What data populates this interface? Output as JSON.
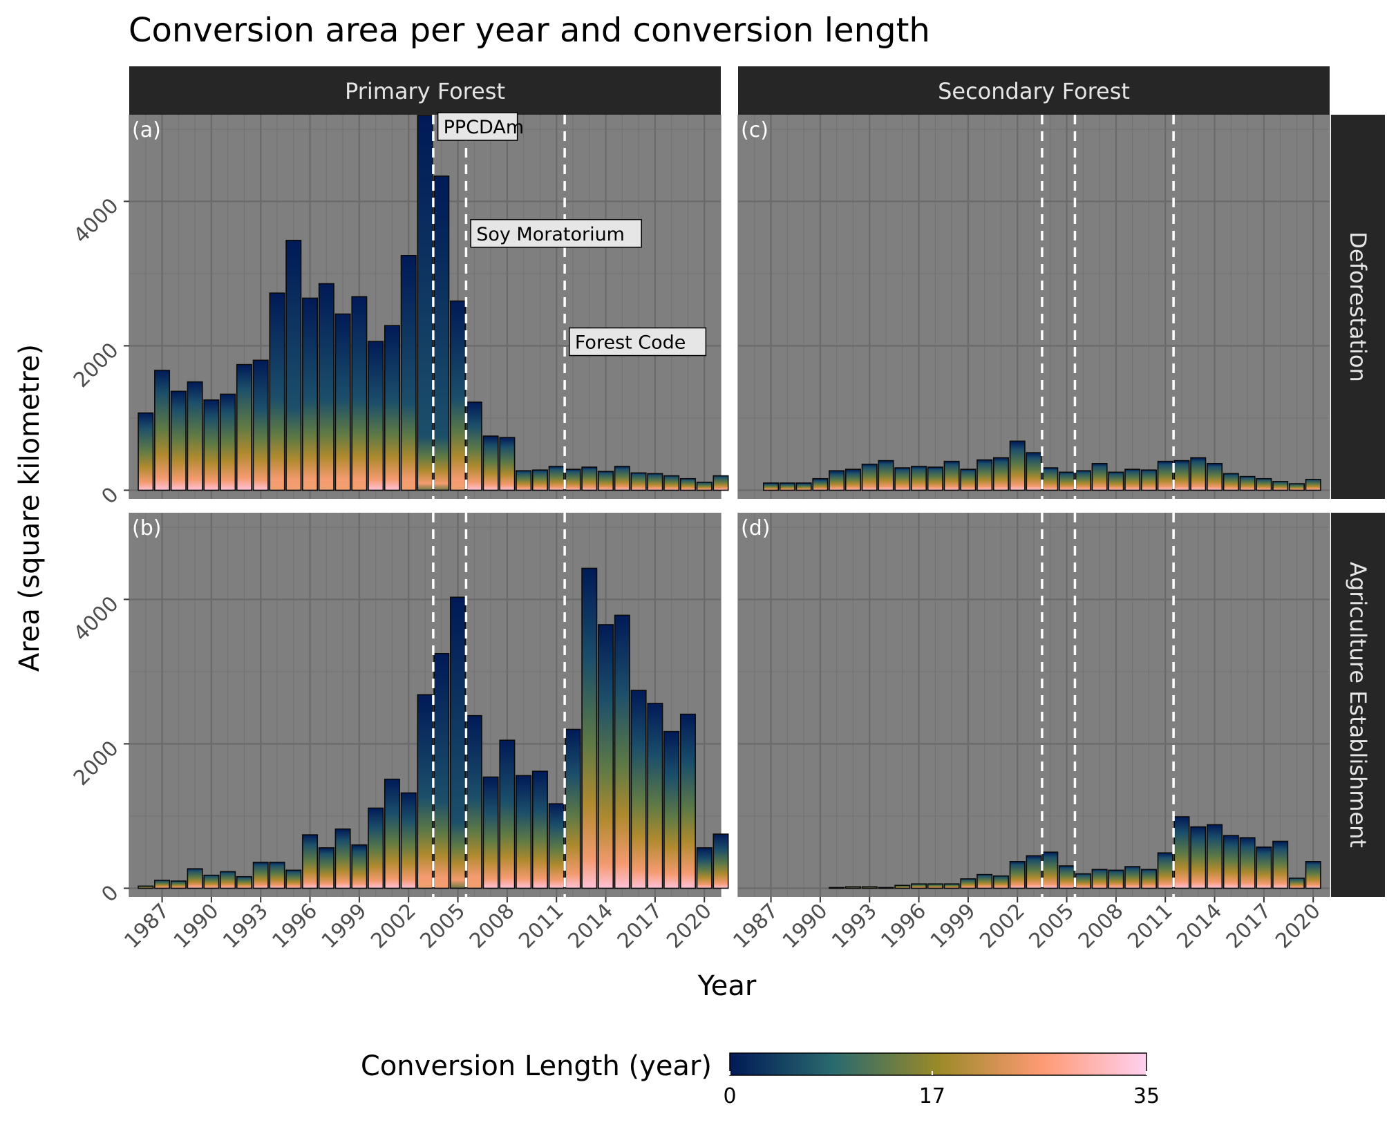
{
  "chart_data": {
    "type": "bar",
    "title": "Conversion area per year and conversion length",
    "xlabel": "Year",
    "ylabel": "Area (square kilometre)",
    "columns": [
      "Primary Forest",
      "Secondary Forest"
    ],
    "rows": [
      "Deforestation",
      "Agriculture Establishment"
    ],
    "x_range": [
      1985,
      2021
    ],
    "ylim": [
      -120,
      5200
    ],
    "x_ticks": [
      1987,
      1990,
      1993,
      1996,
      1999,
      2002,
      2005,
      2008,
      2011,
      2014,
      2017,
      2020
    ],
    "y_ticks": [
      0,
      2000,
      4000
    ],
    "policy_lines": [
      2003.5,
      2005.5,
      2011.5
    ],
    "policy_labels": [
      {
        "text": "PPCDAm",
        "x": 2003.7,
        "y": 4960
      },
      {
        "text": "Soy Moratorium",
        "x": 2005.7,
        "y": 3480
      },
      {
        "text": "Forest Code",
        "x": 2011.7,
        "y": 1980
      }
    ],
    "colorbar": {
      "title": "Conversion Length (year)",
      "min": 0,
      "max": 35,
      "ticks": [
        0,
        17,
        35
      ],
      "colors": [
        "#001a57",
        "#2a6a6e",
        "#9a8a28",
        "#ff9a74",
        "#ffd0f0"
      ]
    },
    "panels": [
      {
        "tag": "(a)",
        "column": "Primary Forest",
        "row": "Deforestation",
        "years": [
          1986,
          1987,
          1988,
          1989,
          1990,
          1991,
          1992,
          1993,
          1994,
          1995,
          1996,
          1997,
          1998,
          1999,
          2000,
          2001,
          2002,
          2003,
          2004,
          2005,
          2006,
          2007,
          2008,
          2009,
          2010,
          2011,
          2012,
          2013,
          2014,
          2015,
          2016,
          2017,
          2018,
          2019,
          2020,
          2021
        ],
        "values": [
          1070,
          1660,
          1370,
          1500,
          1250,
          1330,
          1740,
          1800,
          2730,
          3460,
          2660,
          2860,
          2440,
          2680,
          2060,
          2280,
          3250,
          5190,
          4350,
          2620,
          1220,
          750,
          730,
          270,
          280,
          330,
          290,
          320,
          260,
          330,
          240,
          230,
          200,
          160,
          110,
          200
        ]
      },
      {
        "tag": "(b)",
        "column": "Primary Forest",
        "row": "Agriculture Establishment",
        "years": [
          1986,
          1987,
          1988,
          1989,
          1990,
          1991,
          1992,
          1993,
          1994,
          1995,
          1996,
          1997,
          1998,
          1999,
          2000,
          2001,
          2002,
          2003,
          2004,
          2005,
          2006,
          2007,
          2008,
          2009,
          2010,
          2011,
          2012,
          2013,
          2014,
          2015,
          2016,
          2017,
          2018,
          2019,
          2020,
          2021
        ],
        "values": [
          30,
          110,
          100,
          270,
          180,
          230,
          160,
          360,
          360,
          250,
          740,
          560,
          820,
          600,
          1110,
          1510,
          1320,
          2680,
          3250,
          4030,
          2390,
          1540,
          2050,
          1560,
          1620,
          1170,
          2200,
          4430,
          3650,
          3780,
          2740,
          2560,
          2170,
          2410,
          560,
          750
        ]
      },
      {
        "tag": "(c)",
        "column": "Secondary Forest",
        "row": "Deforestation",
        "years": [
          1986,
          1987,
          1988,
          1989,
          1990,
          1991,
          1992,
          1993,
          1994,
          1995,
          1996,
          1997,
          1998,
          1999,
          2000,
          2001,
          2002,
          2003,
          2004,
          2005,
          2006,
          2007,
          2008,
          2009,
          2010,
          2011,
          2012,
          2013,
          2014,
          2015,
          2016,
          2017,
          2018,
          2019,
          2020,
          2021
        ],
        "values": [
          0,
          100,
          100,
          100,
          160,
          270,
          290,
          360,
          410,
          310,
          330,
          320,
          400,
          290,
          420,
          450,
          680,
          520,
          310,
          250,
          270,
          370,
          250,
          290,
          280,
          400,
          410,
          450,
          370,
          230,
          190,
          160,
          120,
          90,
          150,
          0
        ]
      },
      {
        "tag": "(d)",
        "column": "Secondary Forest",
        "row": "Agriculture Establishment",
        "years": [
          1986,
          1987,
          1988,
          1989,
          1990,
          1991,
          1992,
          1993,
          1994,
          1995,
          1996,
          1997,
          1998,
          1999,
          2000,
          2001,
          2002,
          2003,
          2004,
          2005,
          2006,
          2007,
          2008,
          2009,
          2010,
          2011,
          2012,
          2013,
          2014,
          2015,
          2016,
          2017,
          2018,
          2019,
          2020,
          2021
        ],
        "values": [
          0,
          0,
          0,
          0,
          0,
          10,
          20,
          20,
          10,
          40,
          60,
          60,
          60,
          130,
          190,
          170,
          370,
          450,
          500,
          310,
          200,
          260,
          250,
          300,
          260,
          490,
          990,
          850,
          880,
          730,
          700,
          570,
          650,
          140,
          370,
          0
        ]
      }
    ]
  }
}
